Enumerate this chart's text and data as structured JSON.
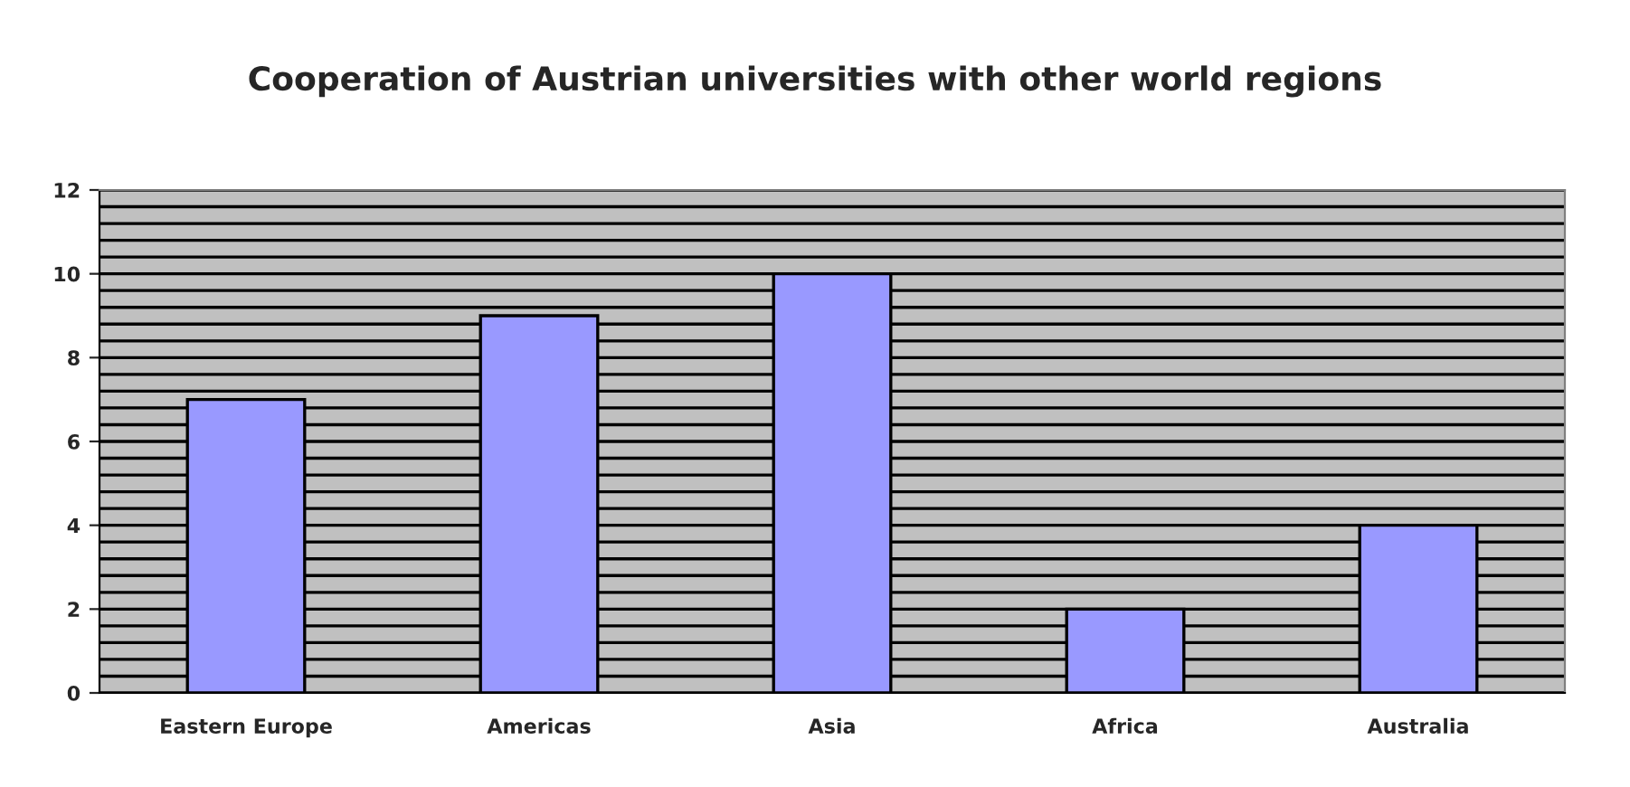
{
  "chart_data": {
    "type": "bar",
    "title": "Cooperation of Austrian universities with other world regions",
    "categories": [
      "Eastern Europe",
      "Americas",
      "Asia",
      "Africa",
      "Australia"
    ],
    "values": [
      7,
      9,
      10,
      2,
      4
    ],
    "color": "#9999ff",
    "ylim": [
      0,
      12
    ],
    "yticks": [
      0,
      {
        "value": 0.4,
        "label": null
      },
      {
        "value": 0.8,
        "label": null
      },
      {
        "value": 1.2,
        "label": null
      },
      {
        "value": 1.6,
        "label": null
      },
      2,
      {
        "value": 2.4,
        "label": null
      },
      {
        "value": 2.8,
        "label": null
      },
      {
        "value": 3.2,
        "label": null
      },
      {
        "value": 3.6,
        "label": null
      },
      4,
      {
        "value": 4.4,
        "label": null
      },
      {
        "value": 4.8,
        "label": null
      },
      {
        "value": 5.2,
        "label": null
      },
      {
        "value": 5.6,
        "label": null
      },
      6,
      {
        "value": 6.4,
        "label": null
      },
      {
        "value": 6.8,
        "label": null
      },
      {
        "value": 7.2,
        "label": null
      },
      {
        "value": 7.6,
        "label": null
      },
      8,
      {
        "value": 8.4,
        "label": null
      },
      {
        "value": 8.8,
        "label": null
      },
      {
        "value": 9.2,
        "label": null
      },
      {
        "value": 9.6,
        "label": null
      },
      10,
      {
        "value": 10.4,
        "label": null
      },
      {
        "value": 10.8,
        "label": null
      },
      {
        "value": 11.2,
        "label": null
      },
      {
        "value": 11.6,
        "label": null
      },
      12
    ],
    "grid": "y",
    "legend": false
  }
}
